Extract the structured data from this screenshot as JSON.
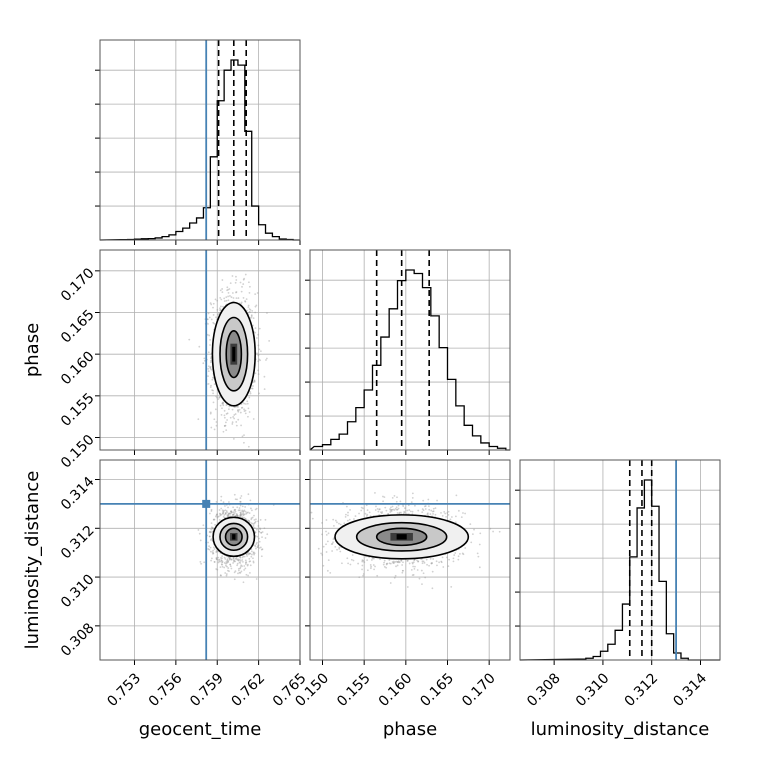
{
  "chart_data": {
    "type": "corner",
    "parameters": [
      "geocent_time",
      "phase",
      "luminosity_distance"
    ],
    "axis_labels": {
      "geocent_time": "geocent_time",
      "phase": "phase",
      "luminosity_distance": "luminosity_distance"
    },
    "ranges": {
      "geocent_time": [
        0.7505,
        0.765
      ],
      "phase": [
        0.1485,
        0.1725
      ],
      "luminosity_distance": [
        0.3066,
        0.3148
      ]
    },
    "ticks": {
      "geocent_time": [
        "0.753",
        "0.756",
        "0.759",
        "0.762",
        "0.765"
      ],
      "phase": [
        "0.150",
        "0.155",
        "0.160",
        "0.165",
        "0.170"
      ],
      "luminosity_distance": [
        "0.308",
        "0.310",
        "0.312",
        "0.314"
      ]
    },
    "injection": {
      "geocent_time": 0.7582,
      "luminosity_distance": 0.313
    },
    "quantiles": {
      "geocent_time": [
        0.7591,
        0.7602,
        0.7611
      ],
      "phase": [
        0.1565,
        0.1595,
        0.1628
      ],
      "luminosity_distance": [
        0.3111,
        0.3116,
        0.312
      ]
    },
    "histograms": {
      "geocent_time": {
        "bin_width": 0.0005,
        "bins": [
          [
            0.752,
            0.002
          ],
          [
            0.7525,
            0.003
          ],
          [
            0.753,
            0.005
          ],
          [
            0.7535,
            0.007
          ],
          [
            0.754,
            0.008
          ],
          [
            0.7545,
            0.012
          ],
          [
            0.755,
            0.02
          ],
          [
            0.7555,
            0.03
          ],
          [
            0.756,
            0.05
          ],
          [
            0.7565,
            0.07
          ],
          [
            0.757,
            0.1
          ],
          [
            0.7575,
            0.13
          ],
          [
            0.758,
            0.19
          ],
          [
            0.7585,
            0.49
          ],
          [
            0.759,
            0.82
          ],
          [
            0.7595,
            1.0
          ],
          [
            0.76,
            1.06
          ],
          [
            0.7605,
            1.03
          ],
          [
            0.761,
            0.64
          ],
          [
            0.7615,
            0.2
          ],
          [
            0.762,
            0.09
          ],
          [
            0.7625,
            0.04
          ],
          [
            0.763,
            0.02
          ],
          [
            0.7635,
            0.006
          ],
          [
            0.764,
            0.003
          ]
        ]
      },
      "phase": {
        "bin_width": 0.001,
        "bins": [
          [
            0.149,
            0.02
          ],
          [
            0.15,
            0.03
          ],
          [
            0.151,
            0.06
          ],
          [
            0.152,
            0.09
          ],
          [
            0.153,
            0.16
          ],
          [
            0.154,
            0.24
          ],
          [
            0.155,
            0.34
          ],
          [
            0.156,
            0.48
          ],
          [
            0.157,
            0.64
          ],
          [
            0.158,
            0.8
          ],
          [
            0.159,
            0.96
          ],
          [
            0.16,
            1.02
          ],
          [
            0.161,
            1.0
          ],
          [
            0.162,
            0.92
          ],
          [
            0.163,
            0.76
          ],
          [
            0.164,
            0.58
          ],
          [
            0.165,
            0.4
          ],
          [
            0.166,
            0.25
          ],
          [
            0.167,
            0.14
          ],
          [
            0.168,
            0.08
          ],
          [
            0.169,
            0.04
          ],
          [
            0.17,
            0.02
          ],
          [
            0.171,
            0.01
          ]
        ]
      },
      "luminosity_distance": {
        "bin_width": 0.0003,
        "bins": [
          [
            0.309,
            0.005
          ],
          [
            0.3093,
            0.01
          ],
          [
            0.3096,
            0.02
          ],
          [
            0.3099,
            0.05
          ],
          [
            0.3102,
            0.09
          ],
          [
            0.3105,
            0.17
          ],
          [
            0.3108,
            0.32
          ],
          [
            0.3111,
            0.59
          ],
          [
            0.3114,
            0.87
          ],
          [
            0.3117,
            1.03
          ],
          [
            0.312,
            0.88
          ],
          [
            0.3123,
            0.45
          ],
          [
            0.3126,
            0.15
          ],
          [
            0.3129,
            0.04
          ],
          [
            0.3132,
            0.01
          ]
        ]
      }
    },
    "pairs": [
      {
        "x": "geocent_time",
        "y": "phase",
        "mean": [
          0.7602,
          0.16
        ],
        "std": [
          0.0008,
          0.0037
        ],
        "contour_levels": [
          {
            "level": "inner",
            "center": [
              0.7602,
              0.16
            ],
            "half_width": [
              0.00055,
              0.0028
            ]
          },
          {
            "level": "middle",
            "center": [
              0.7602,
              0.16
            ],
            "half_width": [
              0.001,
              0.0044
            ]
          },
          {
            "level": "outer",
            "center": [
              0.7602,
              0.16
            ],
            "half_width": [
              0.00155,
              0.0062
            ]
          }
        ]
      },
      {
        "x": "geocent_time",
        "y": "luminosity_distance",
        "mean": [
          0.7602,
          0.31165
        ],
        "std": [
          0.0008,
          0.0006
        ],
        "contour_levels": [
          {
            "level": "inner",
            "center": [
              0.7602,
              0.31165
            ],
            "half_width": [
              0.0006,
              0.00035
            ]
          },
          {
            "level": "middle",
            "center": [
              0.7602,
              0.31165
            ],
            "half_width": [
              0.001,
              0.00055
            ]
          },
          {
            "level": "outer",
            "center": [
              0.7602,
              0.31165
            ],
            "half_width": [
              0.0015,
              0.0008
            ]
          }
        ]
      },
      {
        "x": "phase",
        "y": "luminosity_distance",
        "mean": [
          0.1595,
          0.31165
        ],
        "std": [
          0.0036,
          0.0006
        ],
        "contour_levels": [
          {
            "level": "inner",
            "center": [
              0.1595,
              0.31165
            ],
            "half_width": [
              0.003,
              0.00035
            ]
          },
          {
            "level": "middle",
            "center": [
              0.1595,
              0.31165
            ],
            "half_width": [
              0.0054,
              0.00058
            ]
          },
          {
            "level": "outer",
            "center": [
              0.1595,
              0.31165
            ],
            "half_width": [
              0.008,
              0.0009
            ]
          }
        ]
      }
    ],
    "colors": {
      "histogram": "#000000",
      "quantile": "#000000",
      "injection": "#4682b4",
      "grid": "#b0b0b0",
      "scatter": "#9a9a9a",
      "contour_fills": [
        "#f0f0f0",
        "#c8c8c8",
        "#8a8a8a",
        "#3c3c3c"
      ]
    },
    "grid": true,
    "legend": "none"
  }
}
